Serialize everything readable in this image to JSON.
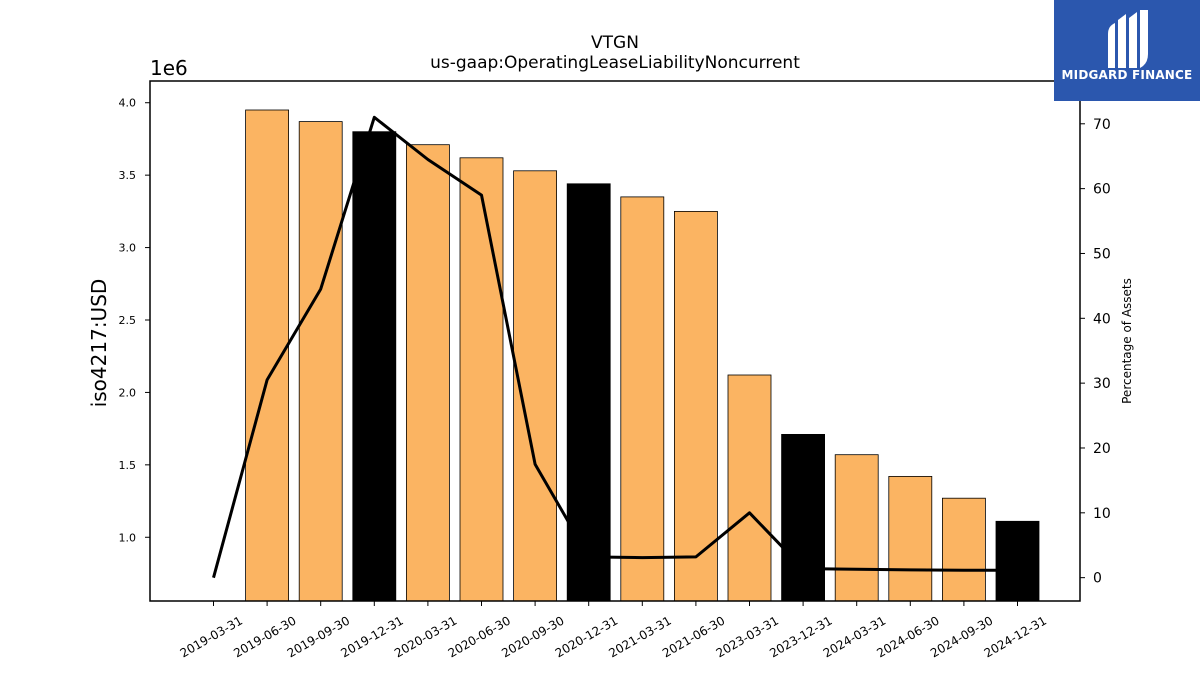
{
  "chart_data": {
    "type": "bar",
    "title": "VTGN",
    "subtitle": "us-gaap:OperatingLeaseLiabilityNoncurrent",
    "ylabel": "iso4217:USD",
    "y_multiplier_label": "1e6",
    "y2label": "Percentage of Assets",
    "categories": [
      "2019-03-31",
      "2019-06-30",
      "2019-09-30",
      "2019-12-31",
      "2020-03-31",
      "2020-06-30",
      "2020-09-30",
      "2020-12-31",
      "2021-03-31",
      "2021-06-30",
      "2023-03-31",
      "2023-12-31",
      "2024-03-31",
      "2024-06-30",
      "2024-09-30",
      "2024-12-31"
    ],
    "values": [
      null,
      3.95,
      3.87,
      3.8,
      3.71,
      3.62,
      3.53,
      3.44,
      3.35,
      3.25,
      2.12,
      1.71,
      1.57,
      1.42,
      1.27,
      1.11
    ],
    "bar_kind": [
      "none",
      "quarter",
      "quarter",
      "annual",
      "quarter",
      "quarter",
      "quarter",
      "annual",
      "quarter",
      "quarter",
      "quarter",
      "annual",
      "quarter",
      "quarter",
      "quarter",
      "annual"
    ],
    "line_series": {
      "name": "Percentage of Assets",
      "values": [
        0.0,
        30.5,
        44.5,
        71.0,
        64.5,
        59.0,
        17.5,
        3.2,
        3.1,
        3.2,
        10.0,
        1.4,
        1.3,
        1.2,
        1.15,
        1.15
      ]
    },
    "ylim": [
      0.56,
      4.15
    ],
    "yticks": [
      1.0,
      1.5,
      2.0,
      2.5,
      3.0,
      3.5,
      4.0
    ],
    "yticks_labels": [
      "1.0",
      "1.5",
      "2.0",
      "2.5",
      "3.0",
      "3.5",
      "4.0"
    ],
    "y2lim": [
      -3.6,
      76.6
    ],
    "y2ticks": [
      0,
      10,
      20,
      30,
      40,
      50,
      60,
      70
    ],
    "y2ticks_labels": [
      "0",
      "10",
      "20",
      "30",
      "40",
      "50",
      "60",
      "70"
    ],
    "colors": {
      "quarter": "#fbb462",
      "annual": "#000000",
      "line": "#000000",
      "edge": "#000000"
    },
    "grid": false
  },
  "logo": {
    "text": "MIDGARD FINANCE",
    "icon": "midgard-logo-icon"
  }
}
